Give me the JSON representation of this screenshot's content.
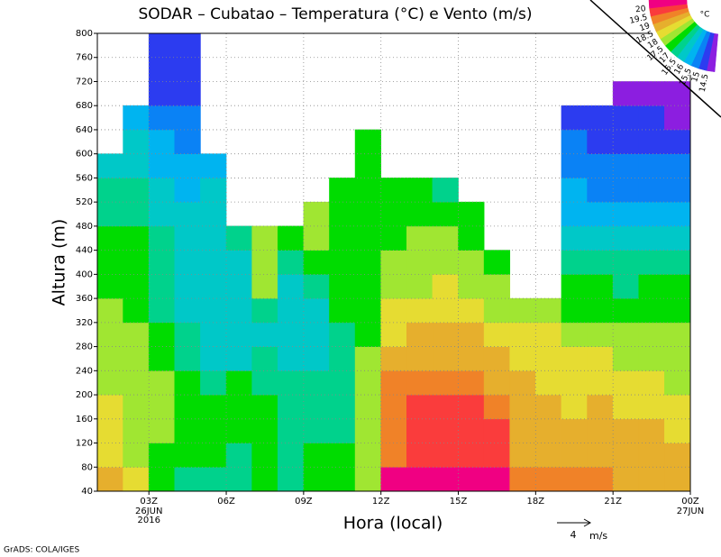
{
  "chart_data": {
    "type": "contour",
    "title": "SODAR – Cubatao – Temperatura (°C) e Vento (m/s)",
    "x_label": "Hora (local)",
    "y_label": "Altura (m)",
    "x": [
      1.5,
      2.5,
      3.5,
      4.5,
      5.5,
      6.5,
      7.5,
      8.5,
      9.5,
      10.5,
      11.5,
      12.5,
      13.5,
      14.5,
      15.5,
      16.5,
      17.5,
      18.5,
      19.5,
      20.5,
      21.5,
      22.5,
      23.5
    ],
    "y": [
      60,
      100,
      140,
      180,
      220,
      260,
      300,
      340,
      380,
      420,
      460,
      500,
      540,
      580,
      620,
      660,
      700,
      740,
      780
    ],
    "z": [
      [
        18.7,
        18.2,
        18.2,
        18.2,
        17.7,
        17.7,
        17.7,
        17.7,
        17.2,
        17.2,
        17.2,
        16.7,
        16.7,
        16.2,
        null,
        null,
        null,
        null,
        null
      ],
      [
        18.2,
        17.7,
        17.7,
        17.7,
        17.7,
        17.7,
        17.7,
        17.2,
        17.2,
        17.2,
        17.2,
        16.7,
        16.7,
        16.2,
        16.2,
        15.7,
        null,
        null,
        null
      ],
      [
        17.2,
        17.2,
        17.7,
        17.7,
        17.7,
        17.2,
        17.2,
        16.7,
        16.7,
        16.7,
        16.7,
        16.2,
        16.2,
        15.7,
        15.7,
        15.2,
        14.7,
        14.7,
        14.7
      ],
      [
        16.7,
        17.2,
        17.2,
        17.2,
        17.2,
        16.7,
        16.7,
        16.2,
        16.2,
        16.2,
        16.2,
        16.2,
        15.7,
        15.7,
        15.2,
        15.2,
        14.7,
        14.7,
        14.7
      ],
      [
        16.7,
        17.2,
        17.2,
        17.2,
        16.7,
        16.2,
        16.2,
        16.2,
        16.2,
        16.2,
        16.2,
        16.2,
        16.2,
        15.7,
        null,
        null,
        null,
        null,
        null
      ],
      [
        16.7,
        16.7,
        17.2,
        17.2,
        17.2,
        16.2,
        16.2,
        16.2,
        16.2,
        16.2,
        16.7,
        null,
        null,
        null,
        null,
        null,
        null,
        null,
        null
      ],
      [
        17.2,
        17.2,
        17.2,
        17.2,
        16.7,
        16.7,
        16.2,
        16.7,
        17.7,
        17.7,
        17.7,
        null,
        null,
        null,
        null,
        null,
        null,
        null,
        null
      ],
      [
        16.7,
        16.7,
        16.7,
        16.7,
        16.7,
        16.2,
        16.2,
        16.2,
        16.2,
        16.7,
        17.2,
        null,
        null,
        null,
        null,
        null,
        null,
        null,
        null
      ],
      [
        17.2,
        17.2,
        16.7,
        16.7,
        16.7,
        16.2,
        16.2,
        16.2,
        16.7,
        17.2,
        17.7,
        17.7,
        null,
        null,
        null,
        null,
        null,
        null,
        null
      ],
      [
        17.2,
        17.2,
        16.7,
        16.7,
        16.7,
        16.7,
        16.7,
        17.2,
        17.2,
        17.2,
        17.2,
        17.2,
        17.2,
        null,
        null,
        null,
        null,
        null,
        null
      ],
      [
        17.7,
        17.7,
        17.7,
        17.7,
        17.7,
        17.7,
        17.2,
        17.2,
        17.2,
        17.2,
        17.2,
        17.2,
        17.2,
        17.2,
        17.2,
        null,
        null,
        null,
        null
      ],
      [
        20.2,
        19.2,
        19.2,
        19.2,
        19.2,
        18.7,
        18.2,
        18.2,
        17.7,
        17.7,
        17.2,
        17.2,
        17.2,
        null,
        null,
        null,
        null,
        null,
        null
      ],
      [
        20.2,
        19.7,
        19.7,
        19.7,
        19.2,
        18.7,
        18.7,
        18.2,
        17.7,
        17.7,
        17.7,
        17.2,
        17.2,
        null,
        null,
        null,
        null,
        null,
        null
      ],
      [
        20.2,
        19.7,
        19.7,
        19.7,
        19.2,
        18.7,
        18.7,
        18.2,
        18.2,
        17.7,
        17.7,
        17.2,
        16.7,
        null,
        null,
        null,
        null,
        null,
        null
      ],
      [
        20.2,
        19.7,
        19.7,
        19.7,
        19.2,
        18.7,
        18.7,
        18.2,
        17.7,
        17.7,
        17.2,
        17.2,
        null,
        null,
        null,
        null,
        null,
        null,
        null
      ],
      [
        20.2,
        19.7,
        19.7,
        19.2,
        18.7,
        18.7,
        18.2,
        17.7,
        17.7,
        17.2,
        null,
        null,
        null,
        null,
        null,
        null,
        null,
        null,
        null
      ],
      [
        19.2,
        18.7,
        18.7,
        18.7,
        18.7,
        18.2,
        18.2,
        17.7,
        null,
        null,
        null,
        null,
        null,
        null,
        null,
        null,
        null,
        null,
        null
      ],
      [
        19.2,
        18.7,
        18.7,
        18.7,
        18.2,
        18.2,
        18.2,
        17.7,
        null,
        null,
        null,
        null,
        null,
        null,
        null,
        null,
        null,
        null,
        null
      ],
      [
        19.2,
        18.7,
        18.7,
        18.2,
        18.2,
        18.2,
        17.7,
        17.2,
        17.2,
        16.7,
        16.2,
        15.7,
        15.7,
        15.2,
        15.2,
        14.7,
        null,
        null,
        null
      ],
      [
        19.2,
        18.7,
        18.7,
        18.7,
        18.2,
        18.2,
        17.7,
        17.2,
        17.2,
        16.7,
        16.2,
        15.7,
        15.2,
        15.2,
        14.7,
        14.7,
        null,
        null,
        null
      ],
      [
        18.7,
        18.7,
        18.7,
        18.2,
        18.2,
        17.7,
        17.7,
        17.2,
        16.7,
        16.7,
        16.2,
        15.7,
        15.2,
        15.2,
        14.7,
        14.7,
        14.2,
        null,
        null
      ],
      [
        18.7,
        18.7,
        18.7,
        18.2,
        18.2,
        17.7,
        17.7,
        17.2,
        17.2,
        16.7,
        16.2,
        15.7,
        15.2,
        15.2,
        14.7,
        14.7,
        14.2,
        null,
        null
      ],
      [
        18.7,
        18.7,
        18.2,
        18.2,
        17.7,
        17.7,
        17.7,
        17.2,
        17.2,
        16.7,
        16.2,
        15.7,
        15.2,
        15.2,
        14.7,
        14.2,
        14.2,
        null,
        null
      ]
    ],
    "levels": [
      14.5,
      15,
      15.5,
      16,
      16.5,
      17,
      17.5,
      18,
      18.5,
      19,
      19.5,
      20
    ],
    "colors": [
      "#8c1ee0",
      "#2c3cf0",
      "#0a82f5",
      "#00b4f0",
      "#00c8c8",
      "#00d28c",
      "#00dc00",
      "#a0e632",
      "#e6dc32",
      "#e6af2d",
      "#f08228",
      "#fa3c3c",
      "#f00082"
    ],
    "colorbar_unit": "°C",
    "xlim": [
      1,
      24
    ],
    "ylim": [
      40,
      800
    ],
    "xticks": [
      {
        "value": 3,
        "label": "03Z"
      },
      {
        "value": 6,
        "label": "06Z"
      },
      {
        "value": 9,
        "label": "09Z"
      },
      {
        "value": 12,
        "label": "12Z"
      },
      {
        "value": 15,
        "label": "15Z"
      },
      {
        "value": 18,
        "label": "18Z"
      },
      {
        "value": 21,
        "label": "21Z"
      },
      {
        "value": 24,
        "label": "00Z"
      }
    ],
    "date_labels": [
      {
        "value": 3,
        "lines": [
          "26JUN",
          "2016"
        ]
      },
      {
        "value": 24,
        "lines": [
          "27JUN"
        ]
      }
    ],
    "yticks": [
      40,
      80,
      120,
      160,
      200,
      240,
      280,
      320,
      360,
      400,
      440,
      480,
      520,
      560,
      600,
      640,
      680,
      720,
      760,
      800
    ],
    "grid": true,
    "wind_scale": {
      "value": 4,
      "unit": "m/s"
    },
    "footer": "GrADS: COLA/IGES"
  }
}
